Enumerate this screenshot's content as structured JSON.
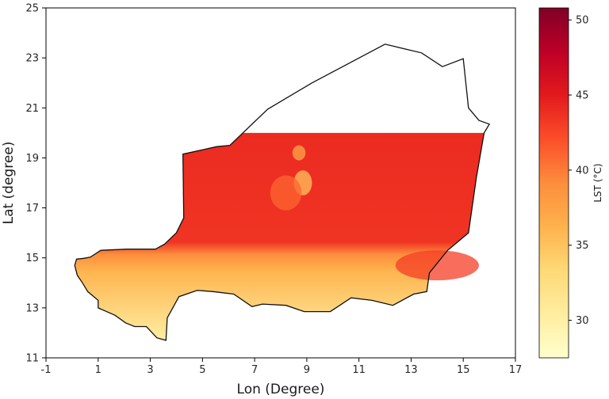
{
  "chart_data": {
    "type": "heatmap",
    "title": "",
    "xlabel": "Lon (Degree)",
    "ylabel": "Lat (degree)",
    "xlim": [
      -1,
      17
    ],
    "ylim": [
      11,
      25
    ],
    "x_ticks": [
      "-1",
      "1",
      "3",
      "5",
      "7",
      "9",
      "11",
      "13",
      "15",
      "17"
    ],
    "y_ticks": [
      "11",
      "13",
      "15",
      "17",
      "19",
      "21",
      "23",
      "25"
    ],
    "colorbar": {
      "label": "LST (°C)",
      "min": 27.5,
      "max": 50.8,
      "ticks": [
        "30",
        "35",
        "40",
        "45",
        "50"
      ],
      "colormap": "YlOrRd",
      "colors": [
        "#ffffcc",
        "#ffeda0",
        "#fed976",
        "#feb24c",
        "#fd8d3c",
        "#fc4e2a",
        "#e31a1c",
        "#bd0026",
        "#800026"
      ]
    },
    "region": "Niger",
    "data_coverage": {
      "lat_max": 20,
      "note_region_above_20N": "no data (white)"
    },
    "lst_pattern": [
      {
        "zone": "north of ~15-16°N (Sahara)",
        "lst_c": 44
      },
      {
        "zone": "south-west and southern border (Sahel)",
        "lst_c": 34
      },
      {
        "zone": "transition band ~14.5-15.5°N",
        "lst_c": 39
      }
    ]
  }
}
